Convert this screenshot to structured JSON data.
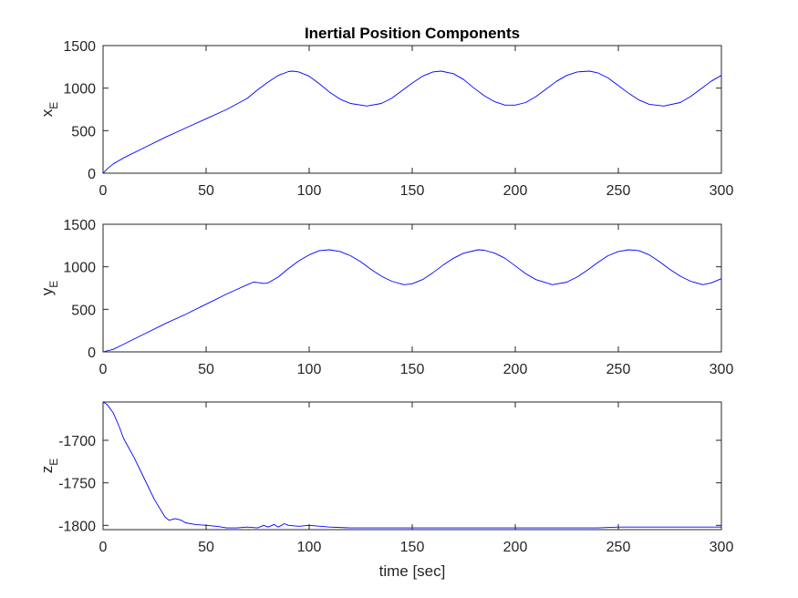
{
  "chart_data": [
    {
      "type": "line",
      "title": "Inertial Position Components",
      "ylabel_main": "x",
      "ylabel_sub": "E",
      "xlabel": "",
      "xlim": [
        0,
        300
      ],
      "ylim": [
        0,
        1500
      ],
      "xticks": [
        0,
        50,
        100,
        150,
        200,
        250,
        300
      ],
      "yticks": [
        0,
        500,
        1000,
        1500
      ],
      "color": "#0000ff",
      "grid": false,
      "series": [
        {
          "x": [
            0,
            2,
            5,
            10,
            20,
            30,
            40,
            50,
            60,
            70,
            75,
            80,
            85,
            90,
            92,
            95,
            100,
            105,
            110,
            115,
            120,
            128,
            135,
            140,
            145,
            150,
            155,
            160,
            164,
            170,
            175,
            180,
            185,
            190,
            195,
            200,
            205,
            210,
            215,
            220,
            225,
            230,
            236,
            240,
            245,
            250,
            255,
            260,
            265,
            272,
            280,
            285,
            290,
            295,
            300
          ],
          "y": [
            0,
            50,
            110,
            180,
            300,
            420,
            530,
            640,
            750,
            880,
            980,
            1070,
            1150,
            1195,
            1200,
            1190,
            1140,
            1050,
            950,
            870,
            820,
            790,
            820,
            880,
            970,
            1060,
            1140,
            1190,
            1200,
            1170,
            1100,
            1000,
            910,
            840,
            800,
            800,
            830,
            900,
            990,
            1080,
            1150,
            1190,
            1200,
            1180,
            1120,
            1030,
            940,
            860,
            810,
            790,
            830,
            900,
            990,
            1080,
            1150
          ]
        }
      ]
    },
    {
      "type": "line",
      "title": "",
      "ylabel_main": "y",
      "ylabel_sub": "E",
      "xlabel": "",
      "xlim": [
        0,
        300
      ],
      "ylim": [
        0,
        1500
      ],
      "xticks": [
        0,
        50,
        100,
        150,
        200,
        250,
        300
      ],
      "yticks": [
        0,
        500,
        1000,
        1500
      ],
      "color": "#0000ff",
      "grid": false,
      "series": [
        {
          "x": [
            0,
            5,
            10,
            20,
            30,
            40,
            50,
            60,
            70,
            73,
            75,
            78,
            80,
            85,
            90,
            95,
            100,
            105,
            110,
            115,
            120,
            125,
            130,
            135,
            140,
            146,
            150,
            155,
            160,
            165,
            170,
            175,
            182,
            185,
            190,
            195,
            200,
            205,
            210,
            218,
            225,
            230,
            235,
            240,
            245,
            250,
            255,
            260,
            265,
            270,
            275,
            280,
            285,
            291,
            295,
            300
          ],
          "y": [
            0,
            30,
            90,
            210,
            330,
            440,
            560,
            680,
            790,
            820,
            815,
            805,
            810,
            880,
            980,
            1070,
            1140,
            1190,
            1200,
            1180,
            1130,
            1060,
            970,
            890,
            830,
            790,
            800,
            850,
            930,
            1020,
            1100,
            1160,
            1200,
            1195,
            1160,
            1100,
            1010,
            920,
            850,
            790,
            820,
            880,
            960,
            1050,
            1130,
            1180,
            1200,
            1190,
            1140,
            1060,
            970,
            890,
            830,
            790,
            810,
            860
          ]
        }
      ]
    },
    {
      "type": "line",
      "title": "",
      "ylabel_main": "z",
      "ylabel_sub": "E",
      "xlabel": "time [sec]",
      "xlim": [
        0,
        300
      ],
      "ylim": [
        -1805,
        -1655
      ],
      "xticks": [
        0,
        50,
        100,
        150,
        200,
        250,
        300
      ],
      "yticks": [
        -1700,
        -1750,
        -1800
      ],
      "color": "#0000ff",
      "grid": false,
      "series": [
        {
          "x": [
            0,
            2,
            5,
            8,
            10,
            15,
            20,
            25,
            30,
            32,
            35,
            38,
            40,
            45,
            50,
            55,
            60,
            65,
            70,
            75,
            78,
            80,
            83,
            85,
            88,
            90,
            95,
            100,
            110,
            120,
            150,
            200,
            240,
            250,
            300
          ],
          "y": [
            -1655,
            -1658,
            -1668,
            -1685,
            -1698,
            -1720,
            -1745,
            -1770,
            -1790,
            -1794,
            -1792,
            -1794,
            -1797,
            -1799,
            -1800,
            -1801,
            -1803,
            -1803,
            -1802,
            -1803,
            -1800,
            -1802,
            -1799,
            -1802,
            -1798,
            -1800,
            -1801,
            -1800,
            -1802,
            -1803,
            -1803,
            -1803,
            -1803,
            -1802,
            -1802
          ]
        }
      ]
    }
  ]
}
